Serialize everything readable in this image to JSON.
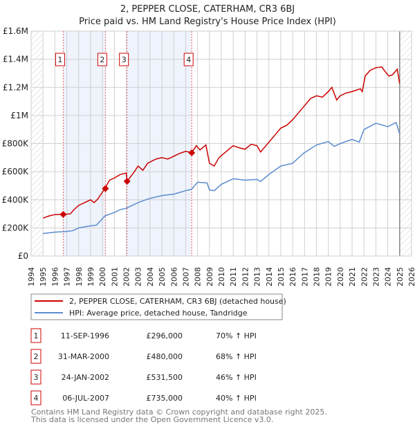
{
  "chart_data": {
    "type": "line",
    "title": "2, PEPPER CLOSE, CATERHAM, CR3 6BJ",
    "subtitle": "Price paid vs. HM Land Registry's House Price Index (HPI)",
    "xlim": [
      1994,
      2026
    ],
    "ylim": [
      0,
      1600000
    ],
    "x_ticks": [
      "1994",
      "1995",
      "1996",
      "1997",
      "1998",
      "1999",
      "2000",
      "2001",
      "2002",
      "2003",
      "2004",
      "2005",
      "2006",
      "2007",
      "2008",
      "2009",
      "2010",
      "2011",
      "2012",
      "2013",
      "2014",
      "2015",
      "2016",
      "2017",
      "2018",
      "2019",
      "2020",
      "2021",
      "2022",
      "2023",
      "2024",
      "2025",
      "2026"
    ],
    "y_ticks": [
      {
        "v": 0,
        "label": "£0"
      },
      {
        "v": 200000,
        "label": "£200K"
      },
      {
        "v": 400000,
        "label": "£400K"
      },
      {
        "v": 600000,
        "label": "£600K"
      },
      {
        "v": 800000,
        "label": "£800K"
      },
      {
        "v": 1000000,
        "label": "£1M"
      },
      {
        "v": 1200000,
        "label": "£1.2M"
      },
      {
        "v": 1400000,
        "label": "£1.4M"
      },
      {
        "v": 1600000,
        "label": "£1.6M"
      }
    ],
    "grid": true,
    "hatched_before": 1995,
    "hatched_after": 2025,
    "series": [
      {
        "name": "2, PEPPER CLOSE, CATERHAM, CR3 6BJ (detached house)",
        "color": "#cc0000",
        "x": [
          1995,
          1995.5,
          1996,
          1996.7,
          1997.3,
          1997.6,
          1998,
          1998.5,
          1999,
          1999.3,
          1999.6,
          2000.2,
          2000.6,
          2001,
          2001.5,
          2002.0,
          2002.07,
          2002.6,
          2003,
          2003.4,
          2003.8,
          2004.5,
          2005,
          2005.5,
          2006,
          2006.5,
          2007,
          2007.5,
          2007.9,
          2008.2,
          2008.7,
          2009,
          2009.4,
          2009.8,
          2010.5,
          2011,
          2011.5,
          2012,
          2012.5,
          2013,
          2013.3,
          2014,
          2014.5,
          2015,
          2015.5,
          2016,
          2016.9,
          2017.5,
          2018,
          2018.5,
          2019,
          2019.3,
          2019.7,
          2020,
          2020.5,
          2021,
          2021.7,
          2021.85,
          2022.1,
          2022.5,
          2023,
          2023.5,
          2023.8,
          2024.1,
          2024.4,
          2024.8,
          2025
        ],
        "y": [
          270000,
          285000,
          295000,
          296000,
          300000,
          330000,
          360000,
          380000,
          400000,
          380000,
          405000,
          480000,
          540000,
          555000,
          580000,
          590000,
          531500,
          590000,
          640000,
          610000,
          660000,
          690000,
          700000,
          690000,
          710000,
          730000,
          745000,
          735000,
          785000,
          755000,
          790000,
          660000,
          640000,
          700000,
          750000,
          785000,
          770000,
          760000,
          795000,
          785000,
          740000,
          810000,
          860000,
          910000,
          930000,
          970000,
          1060000,
          1120000,
          1140000,
          1130000,
          1170000,
          1200000,
          1110000,
          1140000,
          1160000,
          1170000,
          1190000,
          1170000,
          1280000,
          1320000,
          1340000,
          1345000,
          1310000,
          1280000,
          1290000,
          1330000,
          1225000
        ]
      },
      {
        "name": "HPI: Average price, detached house, Tandridge",
        "color": "#5b8ccf",
        "x": [
          1995,
          1996,
          1997,
          1997.5,
          1998,
          1999,
          1999.5,
          2000.2,
          2001,
          2001.5,
          2002,
          2003,
          2003.3,
          2004,
          2005,
          2006,
          2007,
          2007.5,
          2008,
          2008.8,
          2009,
          2009.4,
          2010,
          2011,
          2012,
          2013,
          2013.3,
          2014,
          2015,
          2016,
          2016.9,
          2018,
          2019,
          2019.5,
          2020,
          2021,
          2021.6,
          2022,
          2023,
          2024,
          2024.7,
          2025
        ],
        "y": [
          160000,
          170000,
          175000,
          180000,
          200000,
          215000,
          220000,
          285000,
          310000,
          330000,
          340000,
          380000,
          390000,
          410000,
          430000,
          440000,
          465000,
          475000,
          525000,
          520000,
          470000,
          465000,
          510000,
          550000,
          540000,
          545000,
          530000,
          580000,
          640000,
          660000,
          730000,
          790000,
          815000,
          780000,
          800000,
          830000,
          810000,
          900000,
          945000,
          920000,
          950000,
          870000
        ]
      }
    ],
    "sales": [
      {
        "num": "1",
        "x": 1996.7,
        "price": 296000,
        "date": "11-SEP-1996",
        "price_label": "£296,000",
        "hpi": "70% ↑ HPI"
      },
      {
        "num": "2",
        "x": 2000.25,
        "price": 480000,
        "date": "31-MAR-2000",
        "price_label": "£480,000",
        "hpi": "68% ↑ HPI"
      },
      {
        "num": "3",
        "x": 2002.07,
        "price": 531500,
        "date": "24-JAN-2002",
        "price_label": "£531,500",
        "hpi": "46% ↑ HPI"
      },
      {
        "num": "4",
        "x": 2007.51,
        "price": 735000,
        "date": "06-JUL-2007",
        "price_label": "£735,000",
        "hpi": "40% ↑ HPI"
      }
    ],
    "shaded_ranges": [
      [
        1996.7,
        2000.25
      ],
      [
        2002.07,
        2007.51
      ]
    ],
    "legend_placement": "below"
  },
  "footer": {
    "line1": "Contains HM Land Registry data © Crown copyright and database right 2025.",
    "line2": "This data is licensed under the Open Government Licence v3.0."
  }
}
